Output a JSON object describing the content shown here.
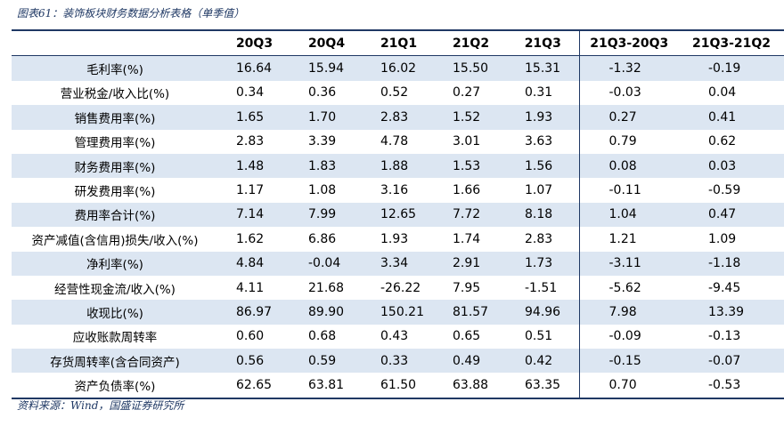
{
  "caption": "图表61：装饰板块财务数据分析表格（单季值）",
  "source": "资料来源：Wind，国盛证券研究所",
  "columns": [
    "",
    "20Q3",
    "20Q4",
    "21Q1",
    "21Q2",
    "21Q3",
    "21Q3-20Q3",
    "21Q3-21Q2"
  ],
  "rows": [
    {
      "label": "毛利率(%)",
      "values": [
        "16.64",
        "15.94",
        "16.02",
        "15.50",
        "15.31",
        "-1.32",
        "-0.19"
      ]
    },
    {
      "label": "营业税金/收入比(%)",
      "values": [
        "0.34",
        "0.36",
        "0.52",
        "0.27",
        "0.31",
        "-0.03",
        "0.04"
      ]
    },
    {
      "label": "销售费用率(%)",
      "values": [
        "1.65",
        "1.70",
        "2.83",
        "1.52",
        "1.93",
        "0.27",
        "0.41"
      ]
    },
    {
      "label": "管理费用率(%)",
      "values": [
        "2.83",
        "3.39",
        "4.78",
        "3.01",
        "3.63",
        "0.79",
        "0.62"
      ]
    },
    {
      "label": "财务费用率(%)",
      "values": [
        "1.48",
        "1.83",
        "1.88",
        "1.53",
        "1.56",
        "0.08",
        "0.03"
      ]
    },
    {
      "label": "研发费用率(%)",
      "values": [
        "1.17",
        "1.08",
        "3.16",
        "1.66",
        "1.07",
        "-0.11",
        "-0.59"
      ]
    },
    {
      "label": "费用率合计(%)",
      "values": [
        "7.14",
        "7.99",
        "12.65",
        "7.72",
        "8.18",
        "1.04",
        "0.47"
      ]
    },
    {
      "label": "资产减值(含信用)损失/收入(%)",
      "values": [
        "1.62",
        "6.86",
        "1.93",
        "1.74",
        "2.83",
        "1.21",
        "1.09"
      ]
    },
    {
      "label": "净利率(%)",
      "values": [
        "4.84",
        "-0.04",
        "3.34",
        "2.91",
        "1.73",
        "-3.11",
        "-1.18"
      ]
    },
    {
      "label": "经营性现金流/收入(%)",
      "values": [
        "4.11",
        "21.68",
        "-26.22",
        "7.95",
        "-1.51",
        "-5.62",
        "-9.45"
      ]
    },
    {
      "label": "收现比(%)",
      "values": [
        "86.97",
        "89.90",
        "150.21",
        "81.57",
        "94.96",
        "7.98",
        "13.39"
      ]
    },
    {
      "label": "应收账款周转率",
      "values": [
        "0.60",
        "0.68",
        "0.43",
        "0.65",
        "0.51",
        "-0.09",
        "-0.13"
      ]
    },
    {
      "label": "存货周转率(含合同资产)",
      "values": [
        "0.56",
        "0.59",
        "0.33",
        "0.49",
        "0.42",
        "-0.15",
        "-0.07"
      ]
    },
    {
      "label": "资产负债率(%)",
      "values": [
        "62.65",
        "63.81",
        "61.50",
        "63.88",
        "63.35",
        "0.70",
        "-0.53"
      ]
    }
  ]
}
